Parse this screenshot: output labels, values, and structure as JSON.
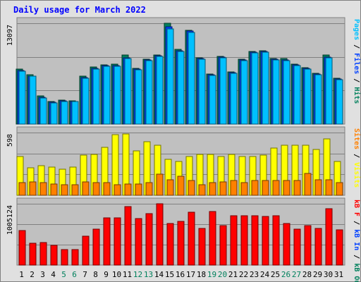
{
  "chart_data": {
    "type": "bar",
    "title": "Daily usage for March 2022",
    "colors": {
      "background": "#e0e0e0",
      "panel": "#c0c0c0",
      "title": "#0000ff",
      "grid": "#808080",
      "day_label": "#000000",
      "weekend_label": "#00805c",
      "hits": "#00805c",
      "files": "#0040ff",
      "pages": "#00c0ff",
      "visits": "#ffff00",
      "sites": "#ff8000",
      "kb_out": "#00805c",
      "kb_in": "#0040ff",
      "kbytes": "#ff0000"
    },
    "days": [
      "1",
      "2",
      "3",
      "4",
      "5",
      "6",
      "7",
      "8",
      "9",
      "10",
      "11",
      "12",
      "13",
      "14",
      "15",
      "16",
      "17",
      "18",
      "19",
      "20",
      "21",
      "22",
      "23",
      "24",
      "25",
      "26",
      "27",
      "28",
      "29",
      "30",
      "31"
    ],
    "weekend_days": [
      "5",
      "6",
      "12",
      "13",
      "19",
      "20",
      "26",
      "27"
    ],
    "panels": [
      {
        "id": "hits",
        "max_label": "13097",
        "ylim": [
          0,
          13097
        ],
        "side_label": [
          {
            "text": "Pages",
            "color": "#00c0ff"
          },
          {
            "text": " / ",
            "color": "#000000"
          },
          {
            "text": "Files",
            "color": "#0040ff"
          },
          {
            "text": " / ",
            "color": "#000000"
          },
          {
            "text": "Hits",
            "color": "#00805c"
          }
        ],
        "series": [
          {
            "name": "Hits",
            "color": "#00805c",
            "values": [
              7110,
              6380,
              3620,
              2900,
              3090,
              3030,
              6200,
              7380,
              7730,
              7750,
              8950,
              7250,
              8420,
              9010,
              13097,
              9700,
              12200,
              8650,
              6540,
              8790,
              6780,
              8460,
              9430,
              9530,
              8490,
              8490,
              7790,
              7300,
              6620,
              8970,
              5950
            ]
          },
          {
            "name": "Files",
            "color": "#0040ff",
            "values": [
              7000,
              6250,
              3520,
              2850,
              3010,
              2960,
              6050,
              7280,
              7620,
              7640,
              8600,
              7130,
              8300,
              8900,
              12600,
              9550,
              12100,
              8540,
              6440,
              8690,
              6680,
              8370,
              9330,
              9430,
              8390,
              8380,
              7690,
              7200,
              6520,
              8700,
              5850
            ]
          },
          {
            "name": "Pages",
            "color": "#00c0ff",
            "values": [
              6900,
              6200,
              3430,
              2790,
              2950,
              2890,
              5980,
              7170,
              7510,
              7550,
              8540,
              7040,
              8200,
              8790,
              12400,
              9400,
              11900,
              8420,
              6350,
              8580,
              6570,
              8260,
              9230,
              9330,
              8290,
              8280,
              7580,
              7100,
              6420,
              8600,
              5740
            ]
          }
        ]
      },
      {
        "id": "visits",
        "max_label": "598",
        "ylim": [
          0,
          598
        ],
        "side_label": [
          {
            "text": "Sites",
            "color": "#ff8000"
          },
          {
            "text": " / ",
            "color": "#000000"
          },
          {
            "text": "Visits",
            "color": "#ffff00"
          }
        ],
        "series": [
          {
            "name": "Visits",
            "color": "#ffff00",
            "values": [
              370,
              260,
              280,
              270,
              250,
              270,
              380,
              390,
              460,
              580,
              586,
              420,
              510,
              480,
              340,
              320,
              370,
              390,
              390,
              370,
              390,
              370,
              370,
              380,
              450,
              480,
              480,
              480,
              440,
              540,
              320
            ]
          },
          {
            "name": "Sites",
            "color": "#ff8000",
            "values": [
              120,
              130,
              120,
              110,
              100,
              100,
              130,
              120,
              120,
              100,
              110,
              110,
              120,
              200,
              150,
              180,
              140,
              100,
              120,
              130,
              140,
              120,
              140,
              140,
              140,
              140,
              140,
              210,
              150,
              150,
              120
            ]
          }
        ]
      },
      {
        "id": "kbytes",
        "max_label": "1005124",
        "ylim": [
          0,
          1005124
        ],
        "side_label": [
          {
            "text": "kB F",
            "color": "#ff0000"
          },
          {
            "text": " / ",
            "color": "#000000"
          },
          {
            "text": "kB In",
            "color": "#0040ff"
          },
          {
            "text": " / ",
            "color": "#000000"
          },
          {
            "text": "kB Out",
            "color": "#00805c"
          }
        ],
        "series": [
          {
            "name": "kB F",
            "color": "#ff0000",
            "values": [
              565000,
              360000,
              365000,
              325000,
              250000,
              250000,
              475000,
              590000,
              777000,
              770000,
              960000,
              760000,
              847000,
              1005124,
              686000,
              719000,
              867000,
              598000,
              874000,
              649000,
              814000,
              814000,
              814000,
              794000,
              814000,
              686000,
              586000,
              650000,
              606000,
              930000,
              581000
            ]
          }
        ]
      }
    ]
  }
}
